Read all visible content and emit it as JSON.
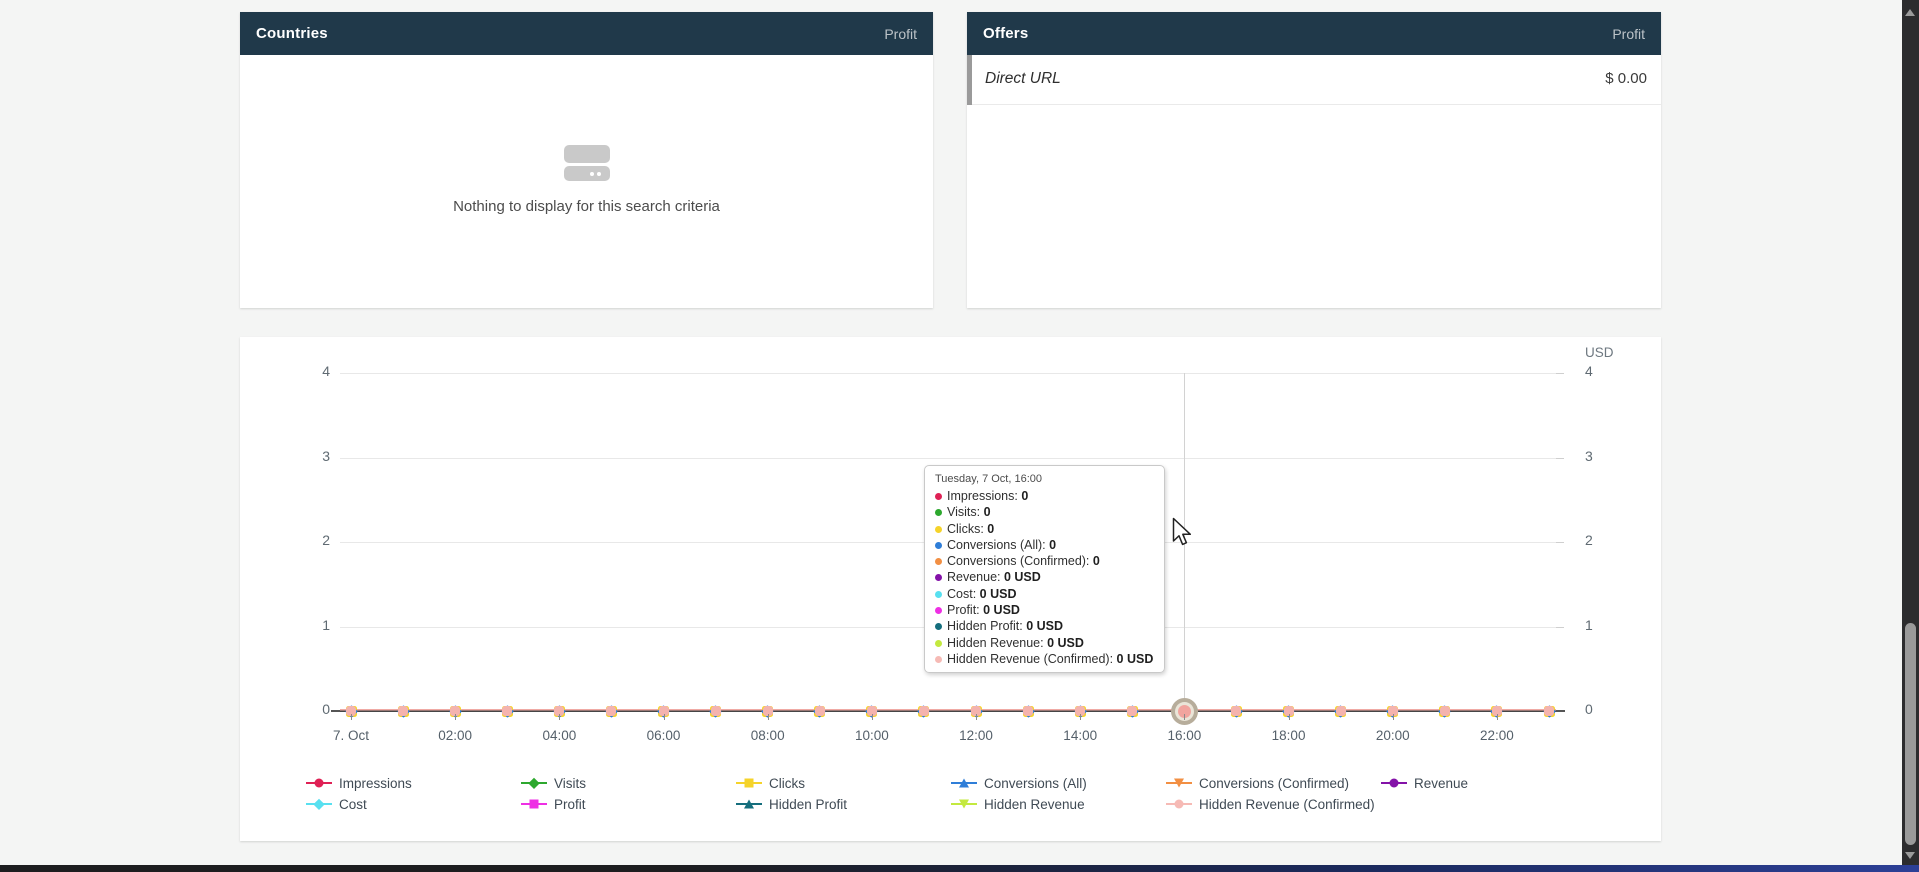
{
  "countries_panel": {
    "title": "Countries",
    "column": "Profit",
    "empty_text": "Nothing to display for this search criteria",
    "empty_icon": "card-icon"
  },
  "offers_panel": {
    "title": "Offers",
    "column": "Profit",
    "rows": [
      {
        "name": "Direct URL",
        "profit": "$ 0.00"
      }
    ]
  },
  "chart": {
    "currency_label": "USD",
    "y_ticks_left": [
      "4",
      "3",
      "2",
      "1",
      "0"
    ],
    "y_ticks_right": [
      "4",
      "3",
      "2",
      "1",
      "0"
    ],
    "x_labels": [
      "7. Oct",
      "02:00",
      "04:00",
      "06:00",
      "08:00",
      "10:00",
      "12:00",
      "14:00",
      "16:00",
      "18:00",
      "20:00",
      "22:00"
    ],
    "tooltip": {
      "title": "Tuesday, 7 Oct, 16:00",
      "rows": [
        {
          "label": "Impressions",
          "value": "0",
          "color": "#df2155"
        },
        {
          "label": "Visits",
          "value": "0",
          "color": "#2da82e"
        },
        {
          "label": "Clicks",
          "value": "0",
          "color": "#f5d32a"
        },
        {
          "label": "Conversions (All)",
          "value": "0",
          "color": "#2f7ed8"
        },
        {
          "label": "Conversions (Confirmed)",
          "value": "0",
          "color": "#f28f43"
        },
        {
          "label": "Revenue",
          "value": "0 USD",
          "color": "#8412a8"
        },
        {
          "label": "Cost",
          "value": "0 USD",
          "color": "#58e0f0"
        },
        {
          "label": "Profit",
          "value": "0 USD",
          "color": "#ee2fe4"
        },
        {
          "label": "Hidden Profit",
          "value": "0 USD",
          "color": "#156e7d"
        },
        {
          "label": "Hidden Revenue",
          "value": "0 USD",
          "color": "#c3e93f"
        },
        {
          "label": "Hidden Revenue (Confirmed)",
          "value": "0 USD",
          "color": "#f6bab5"
        }
      ]
    },
    "legend": [
      {
        "label": "Impressions",
        "color": "#df2155",
        "shape": "circle"
      },
      {
        "label": "Visits",
        "color": "#2da82e",
        "shape": "diamond"
      },
      {
        "label": "Clicks",
        "color": "#f5d32a",
        "shape": "square"
      },
      {
        "label": "Conversions (All)",
        "color": "#2f7ed8",
        "shape": "triangle"
      },
      {
        "label": "Conversions (Confirmed)",
        "color": "#f28f43",
        "shape": "triangle-down"
      },
      {
        "label": "Revenue",
        "color": "#8412a8",
        "shape": "circle"
      },
      {
        "label": "Cost",
        "color": "#58e0f0",
        "shape": "diamond"
      },
      {
        "label": "Profit",
        "color": "#ee2fe4",
        "shape": "square"
      },
      {
        "label": "Hidden Profit",
        "color": "#156e7d",
        "shape": "triangle"
      },
      {
        "label": "Hidden Revenue",
        "color": "#c3e93f",
        "shape": "triangle-down"
      },
      {
        "label": "Hidden Revenue (Confirmed)",
        "color": "#f6bab5",
        "shape": "circle"
      }
    ],
    "chart_data": {
      "type": "line",
      "title": "",
      "xlabel": "",
      "ylabel_right": "USD",
      "ylim": [
        0,
        4
      ],
      "grid": true,
      "legend_position": "bottom",
      "x": [
        "00:00",
        "01:00",
        "02:00",
        "03:00",
        "04:00",
        "05:00",
        "06:00",
        "07:00",
        "08:00",
        "09:00",
        "10:00",
        "11:00",
        "12:00",
        "13:00",
        "14:00",
        "15:00",
        "16:00",
        "17:00",
        "18:00",
        "19:00",
        "20:00",
        "21:00",
        "22:00",
        "23:00"
      ],
      "date": "Tuesday, 7 Oct",
      "highlight_index": 16,
      "series": [
        {
          "name": "Impressions",
          "color": "#df2155",
          "marker": "circle",
          "values": [
            0,
            0,
            0,
            0,
            0,
            0,
            0,
            0,
            0,
            0,
            0,
            0,
            0,
            0,
            0,
            0,
            0,
            0,
            0,
            0,
            0,
            0,
            0,
            0
          ]
        },
        {
          "name": "Visits",
          "color": "#2da82e",
          "marker": "diamond",
          "values": [
            0,
            0,
            0,
            0,
            0,
            0,
            0,
            0,
            0,
            0,
            0,
            0,
            0,
            0,
            0,
            0,
            0,
            0,
            0,
            0,
            0,
            0,
            0,
            0
          ]
        },
        {
          "name": "Clicks",
          "color": "#f5d32a",
          "marker": "square",
          "values": [
            0,
            0,
            0,
            0,
            0,
            0,
            0,
            0,
            0,
            0,
            0,
            0,
            0,
            0,
            0,
            0,
            0,
            0,
            0,
            0,
            0,
            0,
            0,
            0
          ]
        },
        {
          "name": "Conversions (All)",
          "color": "#2f7ed8",
          "marker": "triangle",
          "values": [
            0,
            0,
            0,
            0,
            0,
            0,
            0,
            0,
            0,
            0,
            0,
            0,
            0,
            0,
            0,
            0,
            0,
            0,
            0,
            0,
            0,
            0,
            0,
            0
          ]
        },
        {
          "name": "Conversions (Confirmed)",
          "color": "#f28f43",
          "marker": "triangle-down",
          "values": [
            0,
            0,
            0,
            0,
            0,
            0,
            0,
            0,
            0,
            0,
            0,
            0,
            0,
            0,
            0,
            0,
            0,
            0,
            0,
            0,
            0,
            0,
            0,
            0
          ]
        },
        {
          "name": "Revenue",
          "color": "#8412a8",
          "marker": "circle",
          "values": [
            0,
            0,
            0,
            0,
            0,
            0,
            0,
            0,
            0,
            0,
            0,
            0,
            0,
            0,
            0,
            0,
            0,
            0,
            0,
            0,
            0,
            0,
            0,
            0
          ]
        },
        {
          "name": "Cost",
          "color": "#58e0f0",
          "marker": "diamond",
          "values": [
            0,
            0,
            0,
            0,
            0,
            0,
            0,
            0,
            0,
            0,
            0,
            0,
            0,
            0,
            0,
            0,
            0,
            0,
            0,
            0,
            0,
            0,
            0,
            0
          ]
        },
        {
          "name": "Profit",
          "color": "#ee2fe4",
          "marker": "square",
          "values": [
            0,
            0,
            0,
            0,
            0,
            0,
            0,
            0,
            0,
            0,
            0,
            0,
            0,
            0,
            0,
            0,
            0,
            0,
            0,
            0,
            0,
            0,
            0,
            0
          ]
        },
        {
          "name": "Hidden Profit",
          "color": "#156e7d",
          "marker": "triangle",
          "values": [
            0,
            0,
            0,
            0,
            0,
            0,
            0,
            0,
            0,
            0,
            0,
            0,
            0,
            0,
            0,
            0,
            0,
            0,
            0,
            0,
            0,
            0,
            0,
            0
          ]
        },
        {
          "name": "Hidden Revenue",
          "color": "#c3e93f",
          "marker": "triangle-down",
          "values": [
            0,
            0,
            0,
            0,
            0,
            0,
            0,
            0,
            0,
            0,
            0,
            0,
            0,
            0,
            0,
            0,
            0,
            0,
            0,
            0,
            0,
            0,
            0,
            0
          ]
        },
        {
          "name": "Hidden Revenue (Confirmed)",
          "color": "#f6bab5",
          "marker": "circle",
          "values": [
            0,
            0,
            0,
            0,
            0,
            0,
            0,
            0,
            0,
            0,
            0,
            0,
            0,
            0,
            0,
            0,
            0,
            0,
            0,
            0,
            0,
            0,
            0,
            0
          ]
        }
      ]
    }
  }
}
